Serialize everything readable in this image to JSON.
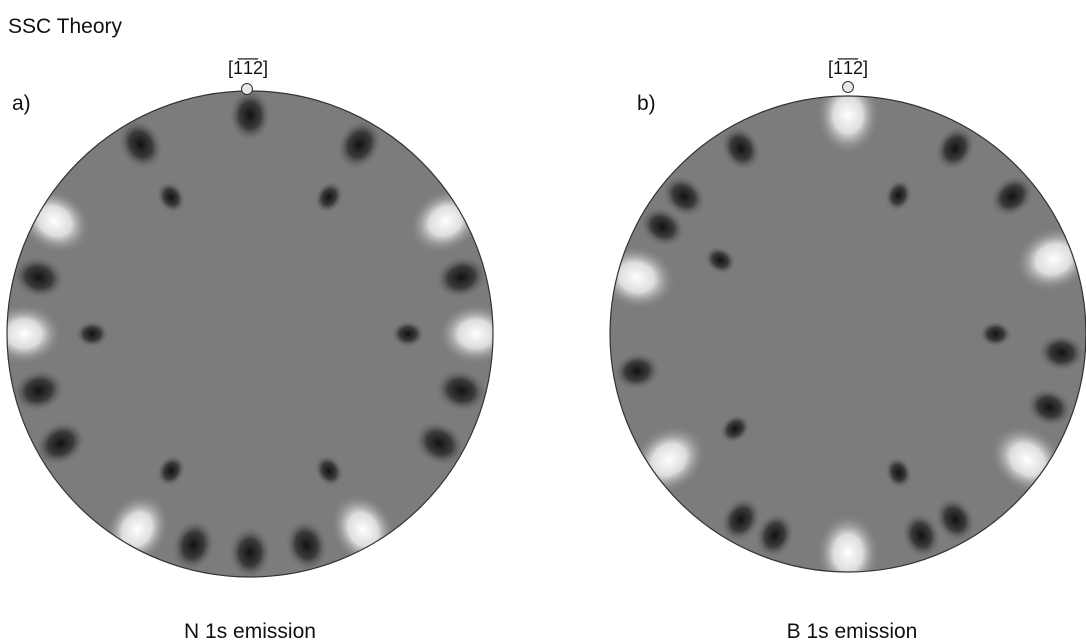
{
  "title": "SSC Theory",
  "panels": [
    {
      "label": "a)",
      "direction": "[1̅1̅2]",
      "caption": "N 1s emission"
    },
    {
      "label": "b)",
      "direction": "[1̅1̅2]",
      "caption": "B 1s emission"
    }
  ]
}
